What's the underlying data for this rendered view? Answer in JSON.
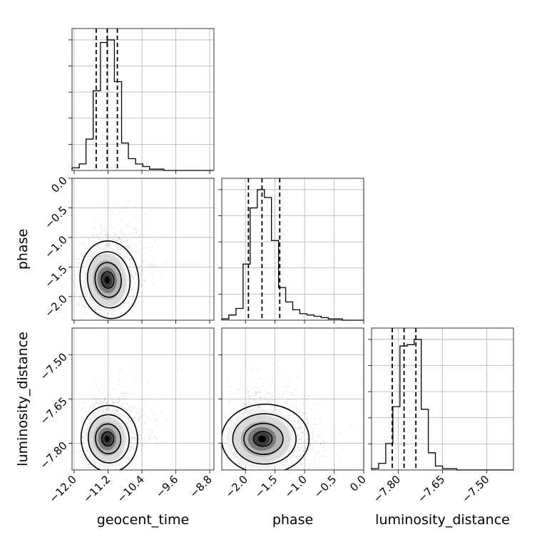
{
  "chart_data": {
    "type": "corner",
    "parameters": [
      "geocent_time",
      "phase",
      "luminosity_distance"
    ],
    "axes": {
      "geocent_time": {
        "range": [
          -12.05,
          -8.7
        ],
        "ticks": [
          -12.0,
          -11.2,
          -10.4,
          -9.6,
          -8.8
        ],
        "tick_labels": [
          "−12.0",
          "−11.2",
          "−10.4",
          "−9.6",
          "−8.8"
        ],
        "quantiles": [
          -11.48,
          -11.22,
          -10.98
        ]
      },
      "phase": {
        "range": [
          -2.4,
          0.0
        ],
        "ticks": [
          -2.0,
          -1.5,
          -1.0,
          -0.5,
          0.0
        ],
        "tick_labels": [
          "−2.0",
          "−1.5",
          "−1.0",
          "−0.5",
          "0.0"
        ],
        "quantiles": [
          -1.95,
          -1.72,
          -1.42
        ]
      },
      "luminosity_distance": {
        "range": [
          -7.89,
          -7.41
        ],
        "ticks": [
          -7.8,
          -7.65,
          -7.5
        ],
        "tick_labels": [
          "−7.80",
          "−7.65",
          "−7.50"
        ],
        "quantiles": [
          -7.82,
          -7.78,
          -7.74
        ]
      }
    },
    "histograms": {
      "geocent_time": {
        "bin_edges": [
          -12.05,
          -11.88,
          -11.72,
          -11.55,
          -11.38,
          -11.22,
          -11.05,
          -10.88,
          -10.72,
          -10.55,
          -10.38,
          -10.22,
          -10.05,
          -9.88,
          -9.72,
          -9.55,
          -9.38,
          -9.22,
          -9.05,
          -8.88,
          -8.72
        ],
        "counts": [
          2,
          5,
          24,
          61,
          98,
          100,
          68,
          21,
          9,
          5,
          3,
          1,
          1,
          0,
          0,
          0,
          0,
          0,
          0,
          0
        ]
      },
      "phase": {
        "bin_edges": [
          -2.4,
          -2.28,
          -2.16,
          -2.04,
          -1.92,
          -1.8,
          -1.68,
          -1.56,
          -1.44,
          -1.32,
          -1.2,
          -1.08,
          -0.96,
          -0.84,
          -0.72,
          -0.6,
          -0.48,
          -0.36,
          -0.24,
          -0.12,
          0.0
        ],
        "counts": [
          1,
          4,
          9,
          43,
          86,
          100,
          94,
          61,
          25,
          14,
          8,
          5,
          4,
          3,
          2,
          1,
          1,
          0,
          0,
          0
        ]
      },
      "luminosity_distance": {
        "bin_edges": [
          -7.89,
          -7.866,
          -7.842,
          -7.818,
          -7.794,
          -7.77,
          -7.746,
          -7.722,
          -7.698,
          -7.674,
          -7.65,
          -7.626,
          -7.602,
          -7.578,
          -7.554,
          -7.53,
          -7.506,
          -7.482,
          -7.458,
          -7.434,
          -7.41
        ],
        "counts": [
          1,
          5,
          20,
          48,
          94,
          95,
          99,
          46,
          13,
          3,
          1,
          1,
          0,
          0,
          0,
          0,
          0,
          0,
          0,
          0
        ]
      }
    },
    "joint_panels": [
      {
        "x": "geocent_time",
        "y": "phase",
        "center": [
          -11.22,
          -1.72
        ],
        "sigma": [
          0.28,
          0.28
        ],
        "rho": 0.25
      },
      {
        "x": "geocent_time",
        "y": "luminosity_distance",
        "center": [
          -11.22,
          -7.785
        ],
        "sigma": [
          0.27,
          0.048
        ],
        "rho": 0.2
      },
      {
        "x": "phase",
        "y": "luminosity_distance",
        "center": [
          -1.72,
          -7.785
        ],
        "sigma": [
          0.3,
          0.05
        ],
        "rho": 0.0
      }
    ]
  }
}
